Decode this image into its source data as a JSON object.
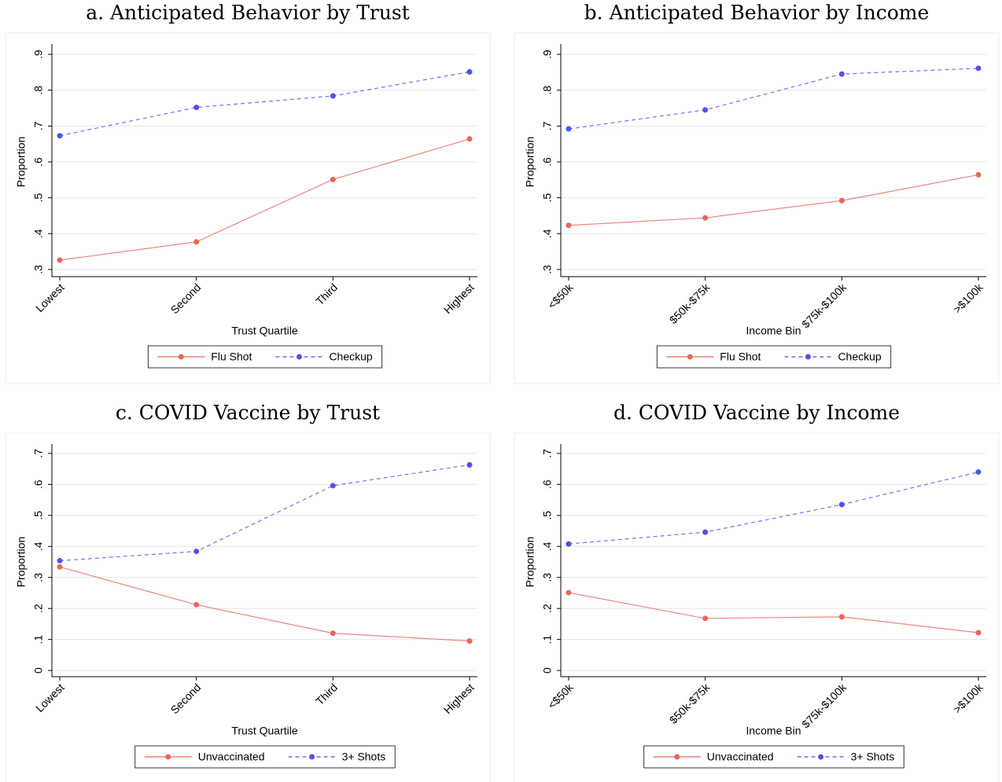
{
  "chart_data": [
    {
      "type": "line",
      "title": "a. Anticipated Behavior by Trust",
      "x_label": "Trust Quartile",
      "y_label": "Proportion",
      "categories": [
        "Lowest",
        "Second",
        "Third",
        "Highest"
      ],
      "ylim": [
        0.28,
        0.92
      ],
      "yticks": [
        {
          "value": 0.3,
          "label": ".3"
        },
        {
          "value": 0.4,
          "label": ".4"
        },
        {
          "value": 0.5,
          "label": ".5"
        },
        {
          "value": 0.6,
          "label": ".6"
        },
        {
          "value": 0.7,
          "label": ".7"
        },
        {
          "value": 0.8,
          "label": ".8"
        },
        {
          "value": 0.9,
          "label": ".9"
        }
      ],
      "grid": true,
      "legend": "bottom",
      "series": [
        {
          "name": "Flu Shot",
          "color": "#e8675d",
          "line_style": "solid",
          "values": [
            0.326,
            0.377,
            0.551,
            0.664
          ]
        },
        {
          "name": "Checkup",
          "color": "#5050ee",
          "line_style": "dashed",
          "values": [
            0.673,
            0.752,
            0.784,
            0.851
          ]
        }
      ]
    },
    {
      "type": "line",
      "title": "b. Anticipated Behavior by Income",
      "x_label": "Income Bin",
      "y_label": "Proportion",
      "categories": [
        "<$50k",
        "$50k-$75k",
        "$75k-$100k",
        ">$100k"
      ],
      "ylim": [
        0.28,
        0.92
      ],
      "yticks": [
        {
          "value": 0.3,
          "label": ".3"
        },
        {
          "value": 0.4,
          "label": ".4"
        },
        {
          "value": 0.5,
          "label": ".5"
        },
        {
          "value": 0.6,
          "label": ".6"
        },
        {
          "value": 0.7,
          "label": ".7"
        },
        {
          "value": 0.8,
          "label": ".8"
        },
        {
          "value": 0.9,
          "label": ".9"
        }
      ],
      "grid": true,
      "legend": "bottom",
      "series": [
        {
          "name": "Flu Shot",
          "color": "#e8675d",
          "line_style": "solid",
          "values": [
            0.423,
            0.444,
            0.492,
            0.564
          ]
        },
        {
          "name": "Checkup",
          "color": "#5050ee",
          "line_style": "dashed",
          "values": [
            0.692,
            0.745,
            0.845,
            0.861
          ]
        }
      ]
    },
    {
      "type": "line",
      "title": "c. COVID Vaccine by Trust",
      "x_label": "Trust Quartile",
      "y_label": "Proportion",
      "categories": [
        "Lowest",
        "Second",
        "Third",
        "Highest"
      ],
      "ylim": [
        -0.02,
        0.72
      ],
      "yticks": [
        0,
        {
          "value": 0.1,
          "label": ".1"
        },
        {
          "value": 0.2,
          "label": ".2"
        },
        {
          "value": 0.3,
          "label": ".3"
        },
        {
          "value": 0.4,
          "label": ".4"
        },
        {
          "value": 0.5,
          "label": ".5"
        },
        {
          "value": 0.6,
          "label": ".6"
        },
        {
          "value": 0.7,
          "label": ".7"
        }
      ],
      "grid": true,
      "legend": "bottom",
      "series": [
        {
          "name": "Unvaccinated",
          "color": "#e8675d",
          "line_style": "solid",
          "values": [
            0.334,
            0.212,
            0.12,
            0.095
          ]
        },
        {
          "name": "3+ Shots",
          "color": "#5050ee",
          "line_style": "dashed",
          "values": [
            0.354,
            0.384,
            0.596,
            0.663
          ]
        }
      ]
    },
    {
      "type": "line",
      "title": "d. COVID Vaccine by Income",
      "x_label": "Income Bin",
      "y_label": "Proportion",
      "categories": [
        "<$50k",
        "$50k-$75k",
        "$75k-$100k",
        ">$100k"
      ],
      "ylim": [
        -0.02,
        0.72
      ],
      "yticks": [
        0,
        {
          "value": 0.1,
          "label": ".1"
        },
        {
          "value": 0.2,
          "label": ".2"
        },
        {
          "value": 0.3,
          "label": ".3"
        },
        {
          "value": 0.4,
          "label": ".4"
        },
        {
          "value": 0.5,
          "label": ".5"
        },
        {
          "value": 0.6,
          "label": ".6"
        },
        {
          "value": 0.7,
          "label": ".7"
        }
      ],
      "grid": true,
      "legend": "bottom",
      "series": [
        {
          "name": "Unvaccinated",
          "color": "#e8675d",
          "line_style": "solid",
          "values": [
            0.251,
            0.168,
            0.173,
            0.122
          ]
        },
        {
          "name": "3+ Shots",
          "color": "#5050ee",
          "line_style": "dashed",
          "values": [
            0.408,
            0.446,
            0.535,
            0.64
          ]
        }
      ]
    }
  ]
}
